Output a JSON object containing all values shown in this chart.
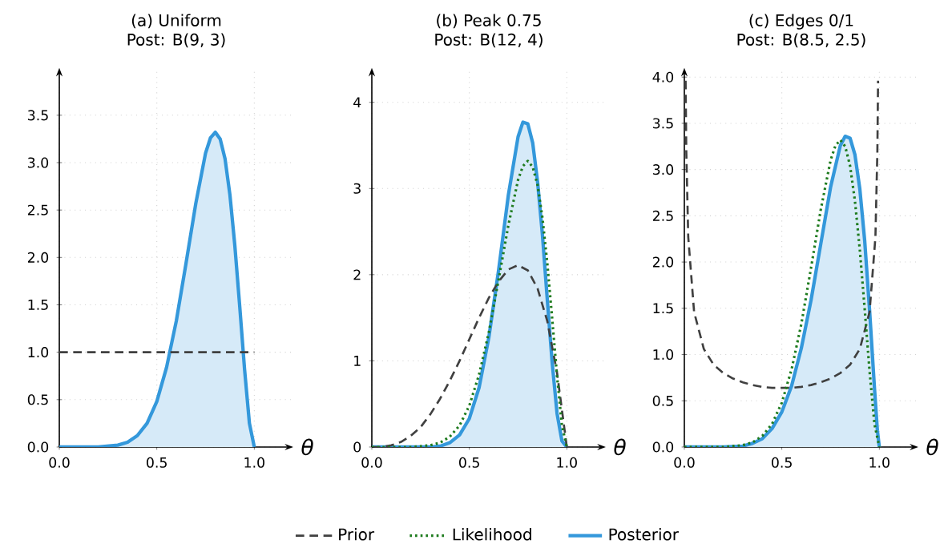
{
  "chart_data": [
    {
      "type": "line",
      "title": "(a) Uniform",
      "subtitle": "Post: B(9, 3)",
      "xlabel": "θ",
      "xlim": [
        0,
        1.2
      ],
      "ylim": [
        0,
        4.0
      ],
      "grid": true,
      "xticks": [
        {
          "value": 0,
          "label": "0.0"
        },
        {
          "value": 0.5,
          "label": "0.5"
        },
        {
          "value": 1,
          "label": "1.0"
        }
      ],
      "yticks": [
        {
          "value": 0,
          "label": "0.0"
        },
        {
          "value": 0.5,
          "label": "0.5"
        },
        {
          "value": 1,
          "label": "1.0"
        },
        {
          "value": 1.5,
          "label": "1.5"
        },
        {
          "value": 2,
          "label": "2.0"
        },
        {
          "value": 2.5,
          "label": "2.5"
        },
        {
          "value": 3,
          "label": "3.0"
        },
        {
          "value": 3.5,
          "label": "3.5"
        }
      ],
      "series": [
        {
          "type": "line",
          "line_style": "dashed",
          "color": "#404040",
          "x": [
            0,
            1
          ],
          "values": [
            1,
            1
          ]
        },
        {
          "type": "area",
          "line_style": "solid",
          "color": "#3498db",
          "x": [
            0,
            0.1,
            0.2,
            0.3,
            0.35,
            0.4,
            0.45,
            0.5,
            0.55,
            0.6,
            0.65,
            0.7,
            0.75,
            0.775,
            0.8,
            0.825,
            0.85,
            0.875,
            0.9,
            0.925,
            0.95,
            0.975,
            1
          ],
          "values": [
            0,
            0,
            0,
            0.02,
            0.05,
            0.12,
            0.25,
            0.48,
            0.84,
            1.33,
            1.94,
            2.57,
            3.1,
            3.26,
            3.32,
            3.25,
            3.04,
            2.66,
            2.13,
            1.49,
            0.82,
            0.25,
            0
          ]
        }
      ]
    },
    {
      "type": "line",
      "title": "(b) Peak 0.75",
      "subtitle": "Post: B(12, 4)",
      "xlabel": "θ",
      "xlim": [
        0,
        1.2
      ],
      "ylim": [
        0,
        4.4
      ],
      "grid": true,
      "legend": "bottom",
      "xticks": [
        {
          "value": 0,
          "label": "0.0"
        },
        {
          "value": 0.5,
          "label": "0.5"
        },
        {
          "value": 1,
          "label": "1.0"
        }
      ],
      "yticks": [
        0,
        1,
        2,
        3,
        4
      ],
      "series": [
        {
          "name": "Prior",
          "type": "line",
          "line_style": "dashed",
          "color": "#404040",
          "x": [
            0,
            0.05,
            0.1,
            0.15,
            0.2,
            0.25,
            0.3,
            0.35,
            0.4,
            0.45,
            0.5,
            0.55,
            0.6,
            0.65,
            0.7,
            0.75,
            0.8,
            0.85,
            0.9,
            0.95,
            1
          ],
          "values": [
            0,
            0,
            0.02,
            0.06,
            0.13,
            0.23,
            0.38,
            0.56,
            0.77,
            1.0,
            1.25,
            1.5,
            1.73,
            1.92,
            2.06,
            2.11,
            2.05,
            1.84,
            1.46,
            0.86,
            0
          ]
        },
        {
          "name": "Likelihood",
          "type": "line",
          "line_style": "dotted",
          "color": "#1e7b1e",
          "x": [
            0,
            0.1,
            0.2,
            0.3,
            0.35,
            0.4,
            0.45,
            0.5,
            0.55,
            0.6,
            0.65,
            0.7,
            0.75,
            0.775,
            0.8,
            0.825,
            0.85,
            0.875,
            0.9,
            0.925,
            0.95,
            0.975,
            1
          ],
          "values": [
            0,
            0,
            0,
            0.02,
            0.05,
            0.12,
            0.25,
            0.48,
            0.84,
            1.33,
            1.94,
            2.57,
            3.1,
            3.26,
            3.32,
            3.25,
            3.04,
            2.66,
            2.13,
            1.49,
            0.82,
            0.25,
            0
          ]
        },
        {
          "name": "Posterior",
          "type": "area",
          "line_style": "solid",
          "color": "#3498db",
          "x": [
            0,
            0.2,
            0.3,
            0.35,
            0.4,
            0.45,
            0.5,
            0.55,
            0.6,
            0.65,
            0.7,
            0.75,
            0.775,
            0.8,
            0.825,
            0.85,
            0.875,
            0.9,
            0.925,
            0.95,
            0.975,
            1
          ],
          "values": [
            0,
            0,
            0,
            0.01,
            0.05,
            0.14,
            0.33,
            0.69,
            1.27,
            2.05,
            2.92,
            3.6,
            3.77,
            3.75,
            3.53,
            3.08,
            2.46,
            1.71,
            0.98,
            0.39,
            0.07,
            0
          ]
        }
      ]
    },
    {
      "type": "line",
      "title": "(c) Edges 0/1",
      "subtitle": "Post: B(8.5, 2.5)",
      "xlabel": "θ",
      "xlim": [
        0,
        1.2
      ],
      "ylim": [
        0,
        4.1
      ],
      "grid": true,
      "xticks": [
        {
          "value": 0,
          "label": "0.0"
        },
        {
          "value": 0.5,
          "label": "0.5"
        },
        {
          "value": 1,
          "label": "1.0"
        }
      ],
      "yticks": [
        {
          "value": 0,
          "label": "0.0"
        },
        {
          "value": 0.5,
          "label": "0.5"
        },
        {
          "value": 1,
          "label": "1.0"
        },
        {
          "value": 1.5,
          "label": "1.5"
        },
        {
          "value": 2,
          "label": "2.0"
        },
        {
          "value": 2.5,
          "label": "2.5"
        },
        {
          "value": 3,
          "label": "3.0"
        },
        {
          "value": 3.5,
          "label": "3.5"
        },
        {
          "value": 4,
          "label": "4.0"
        }
      ],
      "series": [
        {
          "type": "line",
          "line_style": "dashed",
          "color": "#404040",
          "x": [
            0.0065,
            0.01,
            0.02,
            0.05,
            0.1,
            0.15,
            0.2,
            0.25,
            0.3,
            0.35,
            0.4,
            0.45,
            0.5,
            0.55,
            0.6,
            0.65,
            0.7,
            0.75,
            0.8,
            0.85,
            0.9,
            0.95,
            0.98,
            0.99,
            0.9935
          ],
          "values": [
            3.96,
            3.2,
            2.27,
            1.46,
            1.06,
            0.89,
            0.8,
            0.74,
            0.7,
            0.67,
            0.65,
            0.64,
            0.64,
            0.64,
            0.65,
            0.67,
            0.7,
            0.74,
            0.8,
            0.89,
            1.06,
            1.46,
            2.27,
            3.2,
            3.96
          ]
        },
        {
          "type": "line",
          "line_style": "dotted",
          "color": "#1e7b1e",
          "x": [
            0,
            0.1,
            0.2,
            0.3,
            0.35,
            0.4,
            0.45,
            0.5,
            0.55,
            0.6,
            0.65,
            0.7,
            0.75,
            0.775,
            0.8,
            0.825,
            0.85,
            0.875,
            0.9,
            0.925,
            0.95,
            0.975,
            1
          ],
          "values": [
            0,
            0,
            0,
            0.02,
            0.05,
            0.12,
            0.25,
            0.48,
            0.84,
            1.33,
            1.94,
            2.57,
            3.1,
            3.26,
            3.32,
            3.25,
            3.04,
            2.66,
            2.13,
            1.49,
            0.82,
            0.25,
            0
          ]
        },
        {
          "type": "area",
          "line_style": "solid",
          "color": "#3498db",
          "x": [
            0,
            0.2,
            0.3,
            0.35,
            0.4,
            0.45,
            0.5,
            0.55,
            0.6,
            0.65,
            0.7,
            0.75,
            0.8,
            0.825,
            0.85,
            0.875,
            0.9,
            0.925,
            0.95,
            0.975,
            0.99,
            1
          ],
          "values": [
            0,
            0,
            0.01,
            0.04,
            0.09,
            0.2,
            0.38,
            0.66,
            1.07,
            1.59,
            2.2,
            2.81,
            3.26,
            3.36,
            3.34,
            3.16,
            2.79,
            2.23,
            1.48,
            0.64,
            0.18,
            0
          ]
        }
      ]
    }
  ]
}
